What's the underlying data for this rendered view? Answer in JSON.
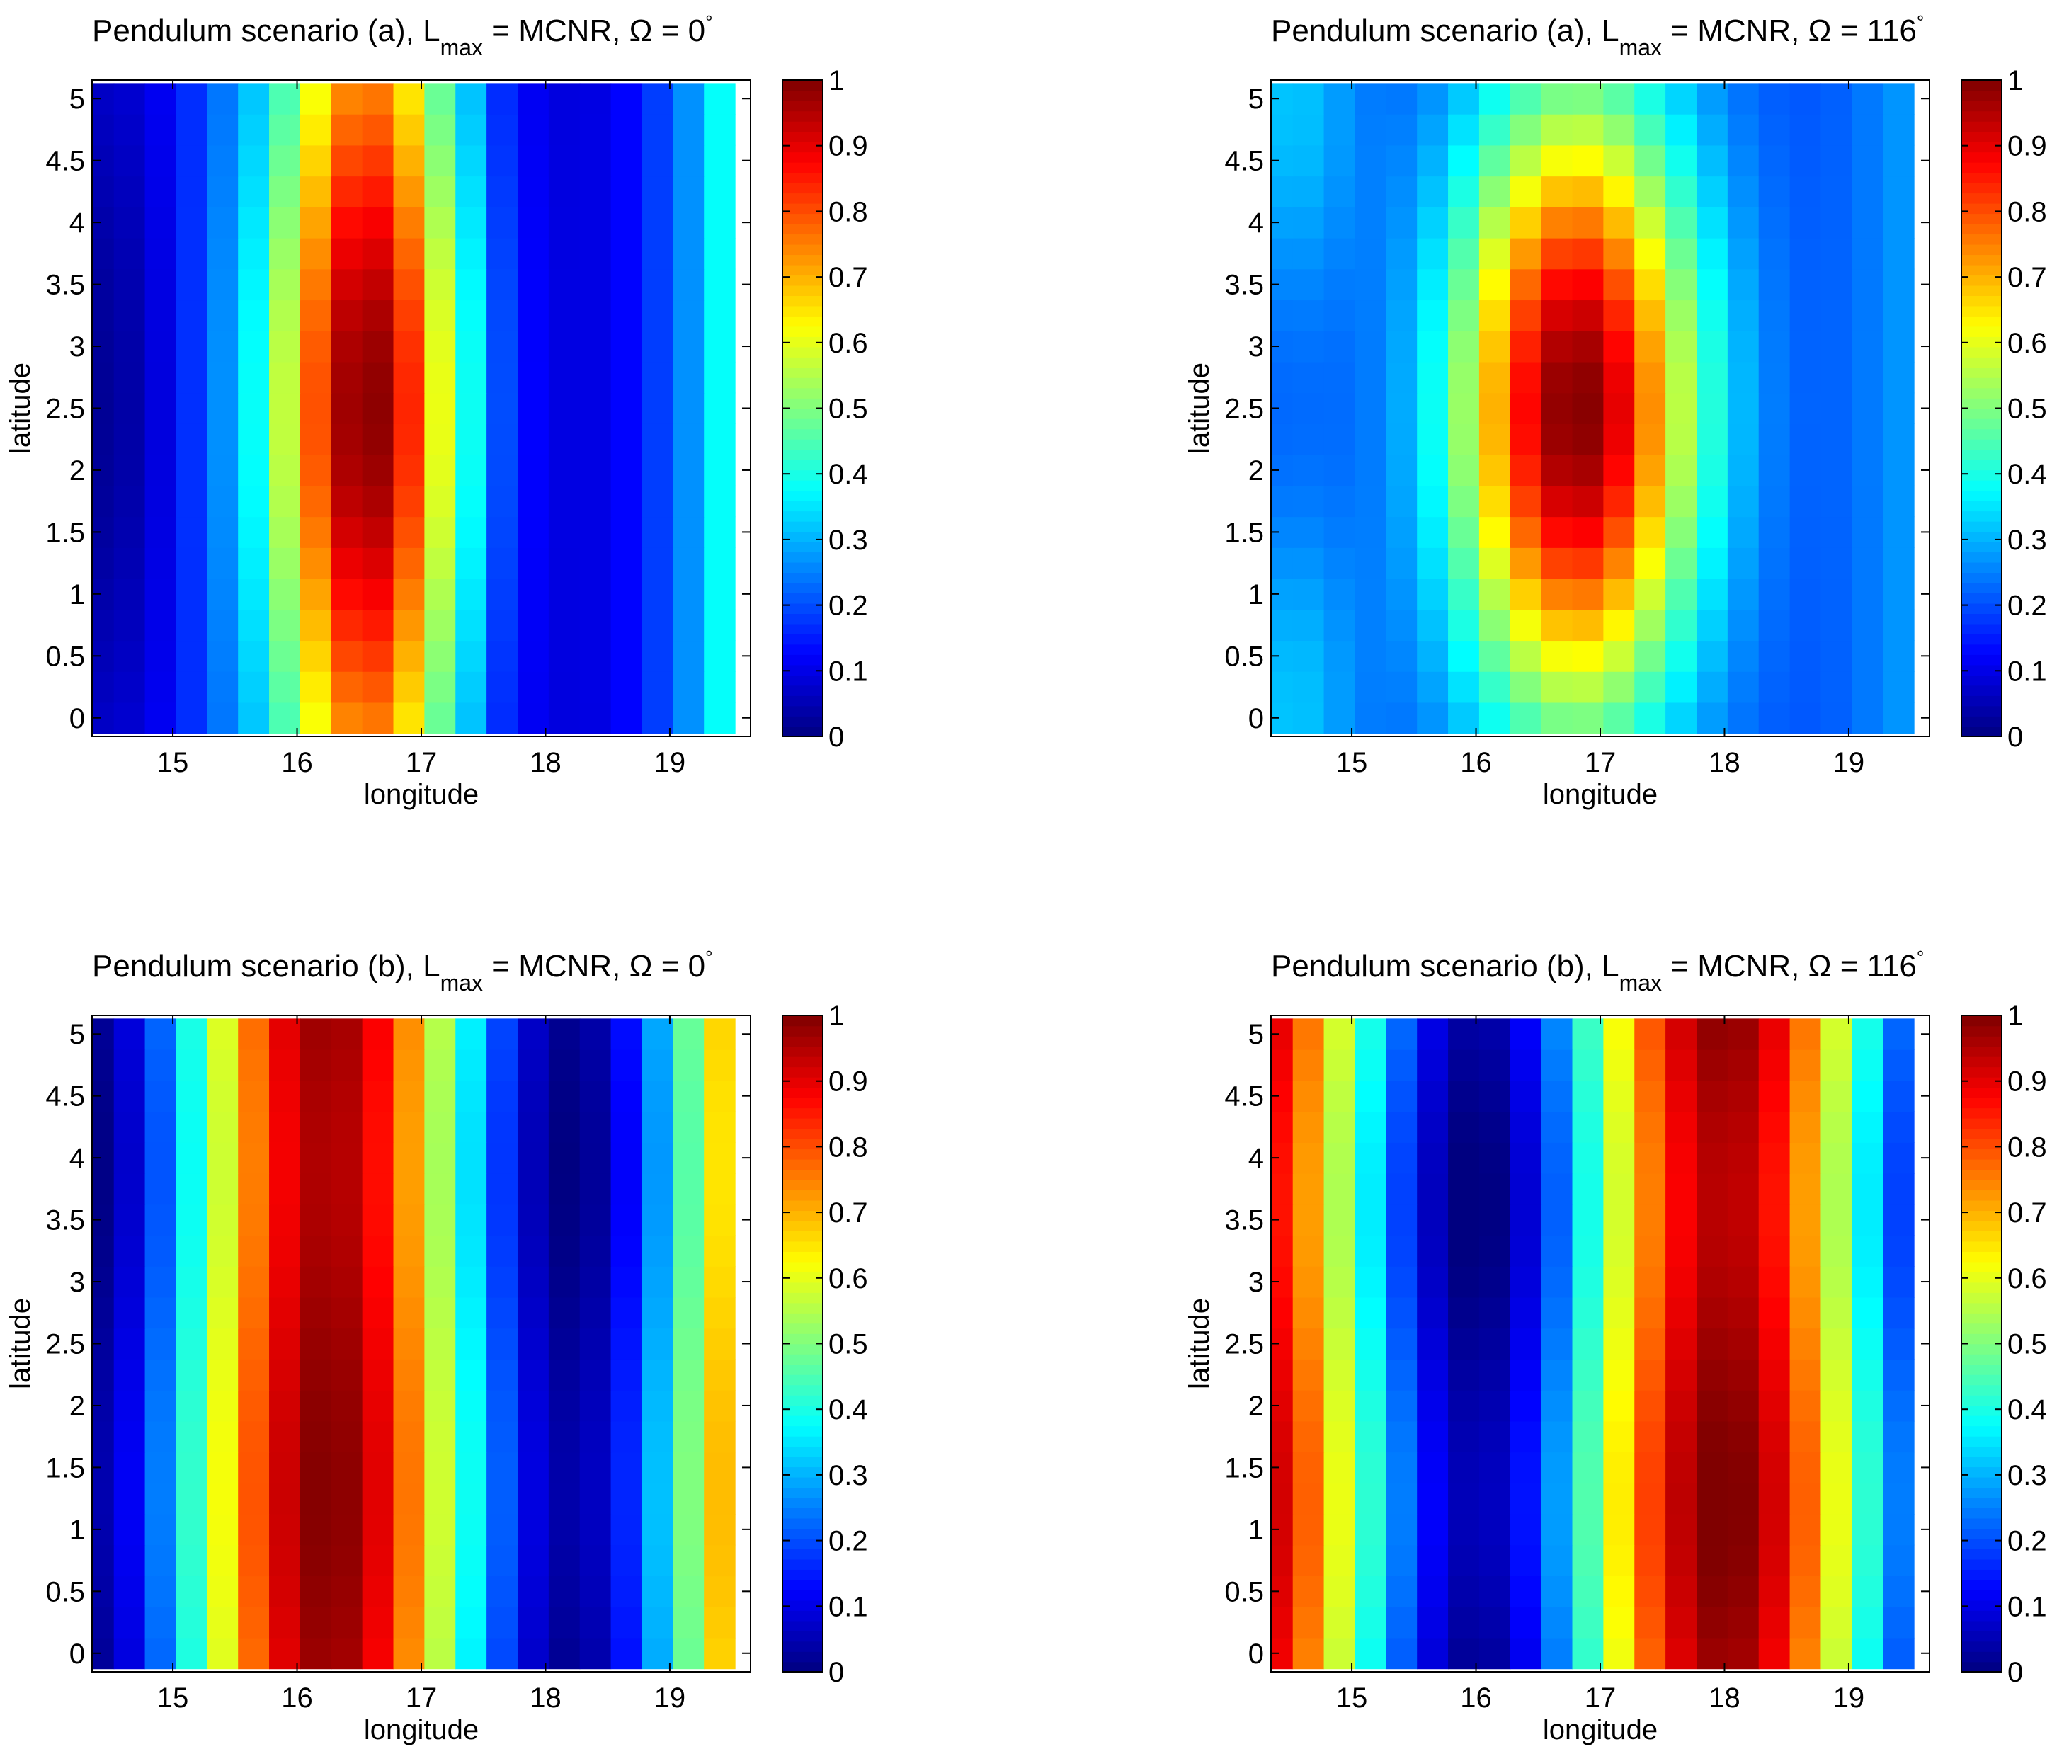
{
  "figure": {
    "colormap": "jet",
    "colorbar_ticks": [
      "0",
      "0.1",
      "0.2",
      "0.3",
      "0.4",
      "0.5",
      "0.6",
      "0.7",
      "0.8",
      "0.9",
      "1"
    ]
  },
  "chart_data": [
    {
      "type": "heatmap",
      "title_main": "Pendulum scenario (a), L",
      "title_sub": "max",
      "title_rest": " = MCNR, Ω = 0",
      "title_deg": "°",
      "xlabel": "longitude",
      "ylabel": "latitude",
      "xlim": [
        14.35,
        19.65
      ],
      "ylim": [
        -0.15,
        5.15
      ],
      "xticks": [
        "15",
        "16",
        "17",
        "18",
        "19"
      ],
      "yticks": [
        "0",
        "0.5",
        "1",
        "1.5",
        "2",
        "2.5",
        "3",
        "3.5",
        "4",
        "4.5",
        "5"
      ],
      "clim": [
        0,
        1
      ],
      "grid": {
        "rows": 21,
        "cols": 21,
        "x_start": 14.4,
        "y_start": -0.0,
        "step": 0.25
      },
      "pattern": {
        "kind": "a0"
      },
      "summary": "Vertical band peak ~1.0 near longitude 16.5, latitude 2.5; minimum ~0.05 at longitude 14.4"
    },
    {
      "type": "heatmap",
      "title_main": "Pendulum scenario (a), L",
      "title_sub": "max",
      "title_rest": " = MCNR, Ω = 116",
      "title_deg": "°",
      "xlabel": "longitude",
      "ylabel": "latitude",
      "xlim": [
        14.35,
        19.65
      ],
      "ylim": [
        -0.15,
        5.15
      ],
      "xticks": [
        "15",
        "16",
        "17",
        "18",
        "19"
      ],
      "yticks": [
        "0",
        "0.5",
        "1",
        "1.5",
        "2",
        "2.5",
        "3",
        "3.5",
        "4",
        "4.5",
        "5"
      ],
      "clim": [
        0,
        1
      ],
      "grid": {
        "rows": 21,
        "cols": 21,
        "x_start": 14.4,
        "y_start": -0.0,
        "step": 0.25
      },
      "pattern": {
        "kind": "a116"
      },
      "summary": "Elliptical peak ~1.0 near longitude 16.75, latitude 2.5"
    },
    {
      "type": "heatmap",
      "title_main": "Pendulum scenario (b), L",
      "title_sub": "max",
      "title_rest": " = MCNR, Ω = 0",
      "title_deg": "°",
      "xlabel": "longitude",
      "ylabel": "latitude",
      "xlim": [
        14.35,
        19.65
      ],
      "ylim": [
        -0.15,
        5.15
      ],
      "xticks": [
        "15",
        "16",
        "17",
        "18",
        "19"
      ],
      "yticks": [
        "0",
        "0.5",
        "1",
        "1.5",
        "2",
        "2.5",
        "3",
        "3.5",
        "4",
        "4.5",
        "5"
      ],
      "clim": [
        0,
        1
      ],
      "grid": {
        "rows": 21,
        "cols": 21,
        "x_start": 14.4,
        "y_start": -0.0,
        "step": 0.25
      },
      "pattern": {
        "kind": "b0"
      },
      "summary": "Vertical stripes; peak ~0.98 at longitude 16.25, minimum ~0.05 at longitude 18.2"
    },
    {
      "type": "heatmap",
      "title_main": "Pendulum scenario (b), L",
      "title_sub": "max",
      "title_rest": " = MCNR, Ω = 116",
      "title_deg": "°",
      "xlabel": "longitude",
      "ylabel": "latitude",
      "xlim": [
        14.35,
        19.65
      ],
      "ylim": [
        -0.15,
        5.15
      ],
      "xticks": [
        "15",
        "16",
        "17",
        "18",
        "19"
      ],
      "yticks": [
        "0",
        "0.5",
        "1",
        "1.5",
        "2",
        "2.5",
        "3",
        "3.5",
        "4",
        "4.5",
        "5"
      ],
      "clim": [
        0,
        1
      ],
      "grid": {
        "rows": 21,
        "cols": 21,
        "x_start": 14.4,
        "y_start": -0.0,
        "step": 0.25
      },
      "pattern": {
        "kind": "b116"
      },
      "summary": "Vertical stripes; peak ~1.0 near longitude 18, minimum ~0.05 near longitude 16"
    }
  ]
}
